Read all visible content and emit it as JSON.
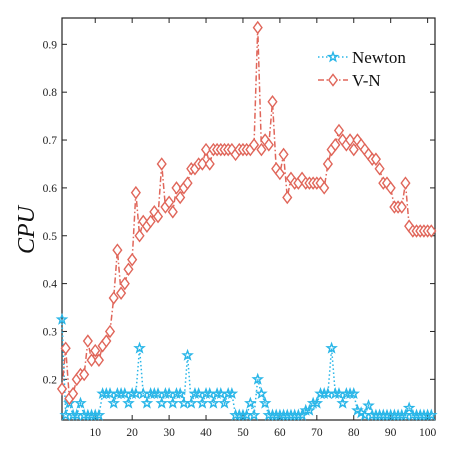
{
  "chart_data": {
    "type": "line",
    "ylabel": "CPU",
    "xlabel": "",
    "xlim": [
      1,
      102
    ],
    "ylim": [
      0.115,
      0.955
    ],
    "xticks": [
      10,
      20,
      30,
      40,
      50,
      60,
      70,
      80,
      90,
      100
    ],
    "yticks": [
      0.2,
      0.3,
      0.4,
      0.5,
      0.6,
      0.7,
      0.8,
      0.9
    ],
    "grid": false,
    "legend_position": "top-right",
    "series": [
      {
        "name": "Newton",
        "color": "#29b6e8",
        "marker": "star",
        "line_style": "dotted",
        "x": [
          1,
          2,
          3,
          4,
          5,
          6,
          7,
          8,
          9,
          10,
          11,
          12,
          13,
          14,
          15,
          16,
          17,
          18,
          19,
          20,
          21,
          22,
          23,
          24,
          25,
          26,
          27,
          28,
          29,
          30,
          31,
          32,
          33,
          34,
          35,
          36,
          37,
          38,
          39,
          40,
          41,
          42,
          43,
          44,
          45,
          46,
          47,
          48,
          49,
          50,
          51,
          52,
          53,
          54,
          55,
          56,
          57,
          58,
          59,
          60,
          61,
          62,
          63,
          64,
          65,
          66,
          67,
          68,
          69,
          70,
          71,
          72,
          73,
          74,
          75,
          76,
          77,
          78,
          79,
          80,
          81,
          82,
          83,
          84,
          85,
          86,
          87,
          88,
          89,
          90,
          91,
          92,
          93,
          94,
          95,
          96,
          97,
          98,
          99,
          100,
          101
        ],
        "values": [
          0.325,
          0.125,
          0.15,
          0.125,
          0.125,
          0.15,
          0.125,
          0.125,
          0.125,
          0.125,
          0.125,
          0.17,
          0.17,
          0.17,
          0.15,
          0.17,
          0.17,
          0.17,
          0.15,
          0.17,
          0.17,
          0.265,
          0.17,
          0.15,
          0.17,
          0.17,
          0.17,
          0.15,
          0.17,
          0.17,
          0.15,
          0.17,
          0.17,
          0.15,
          0.25,
          0.15,
          0.17,
          0.17,
          0.15,
          0.17,
          0.17,
          0.15,
          0.17,
          0.17,
          0.15,
          0.17,
          0.17,
          0.125,
          0.125,
          0.125,
          0.125,
          0.15,
          0.125,
          0.2,
          0.17,
          0.15,
          0.125,
          0.125,
          0.125,
          0.125,
          0.125,
          0.125,
          0.125,
          0.125,
          0.125,
          0.125,
          0.135,
          0.135,
          0.15,
          0.15,
          0.17,
          0.17,
          0.17,
          0.265,
          0.17,
          0.17,
          0.15,
          0.17,
          0.17,
          0.17,
          0.135,
          0.13,
          0.125,
          0.145,
          0.125,
          0.125,
          0.125,
          0.125,
          0.125,
          0.125,
          0.125,
          0.125,
          0.125,
          0.125,
          0.14,
          0.125,
          0.125,
          0.125,
          0.125,
          0.125,
          0.125
        ]
      },
      {
        "name": "V-N",
        "color": "#e0665a",
        "marker": "diamond",
        "line_style": "dashdot",
        "x": [
          1,
          2,
          3,
          4,
          5,
          6,
          7,
          8,
          9,
          10,
          11,
          12,
          13,
          14,
          15,
          16,
          17,
          18,
          19,
          20,
          21,
          22,
          23,
          24,
          25,
          26,
          27,
          28,
          29,
          30,
          31,
          32,
          33,
          34,
          35,
          36,
          37,
          38,
          39,
          40,
          41,
          42,
          43,
          44,
          45,
          46,
          47,
          48,
          49,
          50,
          51,
          52,
          53,
          54,
          55,
          56,
          57,
          58,
          59,
          60,
          61,
          62,
          63,
          64,
          65,
          66,
          67,
          68,
          69,
          70,
          71,
          72,
          73,
          74,
          75,
          76,
          77,
          78,
          79,
          80,
          81,
          82,
          83,
          84,
          85,
          86,
          87,
          88,
          89,
          90,
          91,
          92,
          93,
          94,
          95,
          96,
          97,
          98,
          99,
          100,
          101
        ],
        "values": [
          0.18,
          0.265,
          0.16,
          0.17,
          0.2,
          0.21,
          0.21,
          0.28,
          0.24,
          0.26,
          0.24,
          0.27,
          0.28,
          0.3,
          0.37,
          0.47,
          0.38,
          0.4,
          0.43,
          0.45,
          0.59,
          0.5,
          0.53,
          0.52,
          0.53,
          0.55,
          0.54,
          0.65,
          0.56,
          0.57,
          0.55,
          0.6,
          0.58,
          0.6,
          0.61,
          0.64,
          0.64,
          0.65,
          0.65,
          0.68,
          0.65,
          0.68,
          0.68,
          0.68,
          0.68,
          0.68,
          0.68,
          0.67,
          0.68,
          0.68,
          0.68,
          0.68,
          0.69,
          0.935,
          0.68,
          0.7,
          0.69,
          0.78,
          0.64,
          0.63,
          0.67,
          0.58,
          0.62,
          0.61,
          0.61,
          0.62,
          0.61,
          0.61,
          0.61,
          0.61,
          0.61,
          0.6,
          0.65,
          0.68,
          0.69,
          0.72,
          0.7,
          0.69,
          0.7,
          0.68,
          0.7,
          0.69,
          0.68,
          0.67,
          0.66,
          0.66,
          0.64,
          0.61,
          0.61,
          0.6,
          0.56,
          0.56,
          0.56,
          0.61,
          0.52,
          0.51,
          0.51,
          0.51,
          0.51,
          0.51,
          0.51
        ]
      }
    ]
  }
}
